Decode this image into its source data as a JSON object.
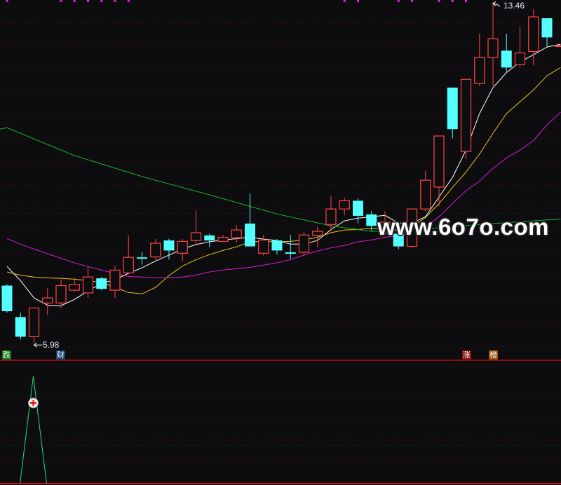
{
  "chart_data": {
    "type": "candlestick",
    "colors": {
      "up": "#ff4444",
      "down": "#54ffff",
      "ma5": "#ffffff",
      "ma10": "#e6c619",
      "ma20": "#d21ad2",
      "ma60": "#16b22c",
      "grid": "#5a0f0f",
      "divider": "#8a0c0c",
      "indicator": "#1fe07a"
    },
    "ylim": [
      5.63,
      13.51
    ],
    "grid": true,
    "candles": [
      [
        7.25,
        7.28,
        6.66,
        6.69
      ],
      [
        6.56,
        6.66,
        6.07,
        6.13
      ],
      [
        6.13,
        6.76,
        5.98,
        6.76
      ],
      [
        6.87,
        7.19,
        6.61,
        6.98
      ],
      [
        6.87,
        7.38,
        6.76,
        7.25
      ],
      [
        7.15,
        7.42,
        7.12,
        7.28
      ],
      [
        7.09,
        7.67,
        6.98,
        7.44
      ],
      [
        7.41,
        7.44,
        7.15,
        7.18
      ],
      [
        7.15,
        7.68,
        6.98,
        7.59
      ],
      [
        7.53,
        8.35,
        7.53,
        7.87
      ],
      [
        7.87,
        7.99,
        7.71,
        7.86
      ],
      [
        7.88,
        8.27,
        7.82,
        8.18
      ],
      [
        8.24,
        8.28,
        7.82,
        8.02
      ],
      [
        7.96,
        8.27,
        7.78,
        8.22
      ],
      [
        8.24,
        8.91,
        8.13,
        8.41
      ],
      [
        8.35,
        8.39,
        8.1,
        8.24
      ],
      [
        8.22,
        8.36,
        8.21,
        8.31
      ],
      [
        8.3,
        8.58,
        8.19,
        8.47
      ],
      [
        8.61,
        9.27,
        8.11,
        8.11
      ],
      [
        7.96,
        8.36,
        7.91,
        8.25
      ],
      [
        8.24,
        8.27,
        7.93,
        8.02
      ],
      [
        7.98,
        8.36,
        7.84,
        7.95
      ],
      [
        7.98,
        8.42,
        7.91,
        8.36
      ],
      [
        8.35,
        8.54,
        8.1,
        8.44
      ],
      [
        8.59,
        9.21,
        8.44,
        8.93
      ],
      [
        8.93,
        9.17,
        8.79,
        9.11
      ],
      [
        9.11,
        9.16,
        8.62,
        8.78
      ],
      [
        8.81,
        8.88,
        8.45,
        8.56
      ],
      [
        8.39,
        8.88,
        8.35,
        8.64
      ],
      [
        8.39,
        8.39,
        8.05,
        8.11
      ],
      [
        8.11,
        8.93,
        8.08,
        8.93
      ],
      [
        8.93,
        9.77,
        8.87,
        9.56
      ],
      [
        9.41,
        10.53,
        8.99,
        10.53
      ],
      [
        11.59,
        11.59,
        10.48,
        10.68
      ],
      [
        10.19,
        11.77,
        10.02,
        11.77
      ],
      [
        11.68,
        12.77,
        11.62,
        12.25
      ],
      [
        12.25,
        13.46,
        11.63,
        12.66
      ],
      [
        12.4,
        12.77,
        11.94,
        12.03
      ],
      [
        12.09,
        12.92,
        12.05,
        12.35
      ],
      [
        12.38,
        13.31,
        12.08,
        13.14
      ],
      [
        13.11,
        13.11,
        12.49,
        12.69
      ],
      [
        12.49,
        12.51,
        12.49,
        12.51
      ]
    ],
    "candle_format": [
      "open",
      "high",
      "low",
      "close"
    ],
    "ma_lines": [
      {
        "key": "ma5",
        "values": [
          7.67,
          7.36,
          6.98,
          6.82,
          6.81,
          6.95,
          7.13,
          7.3,
          7.38,
          7.52,
          7.64,
          7.79,
          7.92,
          8.05,
          8.15,
          8.21,
          8.25,
          8.28,
          8.31,
          8.27,
          8.24,
          8.16,
          8.16,
          8.24,
          8.48,
          8.67,
          8.73,
          8.76,
          8.79,
          8.62,
          8.62,
          8.76,
          9.19,
          9.62,
          10.22,
          11.02,
          11.59,
          11.92,
          12.15,
          12.31,
          12.48,
          12.54
        ]
      },
      {
        "key": "ma10",
        "values": [
          7.55,
          7.48,
          7.44,
          7.42,
          7.41,
          7.39,
          7.36,
          7.32,
          7.21,
          7.1,
          7.07,
          7.21,
          7.47,
          7.68,
          7.82,
          7.93,
          8.02,
          8.1,
          8.21,
          8.22,
          8.21,
          8.22,
          8.25,
          8.31,
          8.41,
          8.47,
          8.48,
          8.51,
          8.48,
          8.47,
          8.54,
          8.74,
          9.05,
          9.4,
          9.74,
          10.13,
          10.59,
          11.02,
          11.28,
          11.54,
          11.85,
          12.03
        ]
      },
      {
        "key": "ma20",
        "values": [
          8.28,
          8.16,
          8.05,
          7.95,
          7.85,
          7.75,
          7.67,
          7.59,
          7.52,
          7.45,
          7.44,
          7.42,
          7.42,
          7.44,
          7.48,
          7.55,
          7.59,
          7.62,
          7.65,
          7.7,
          7.75,
          7.82,
          7.92,
          8.01,
          8.08,
          8.13,
          8.21,
          8.25,
          8.31,
          8.35,
          8.41,
          8.53,
          8.76,
          9.05,
          9.33,
          9.54,
          9.82,
          10.05,
          10.22,
          10.43,
          10.77,
          11.05
        ]
      },
      {
        "key": "ma60",
        "indices": [
          0,
          5,
          10,
          15,
          20,
          24,
          27,
          30,
          35,
          41
        ],
        "values": [
          10.71,
          10.1,
          9.64,
          9.24,
          8.82,
          8.56,
          8.44,
          8.47,
          8.59,
          8.71
        ]
      }
    ],
    "annotations": {
      "low_label": "5.98",
      "low_index": 2,
      "high_label": "13.46",
      "high_index": 36
    },
    "top_marker_indices": [
      0,
      4,
      5,
      6,
      7,
      8,
      9,
      25,
      26,
      29,
      30,
      32,
      33,
      34
    ],
    "indicator": {
      "signal_index": 2,
      "values": [
        0,
        0,
        1,
        0,
        0
      ]
    }
  },
  "badges": {
    "die": "跌",
    "cai": "财",
    "zhang": "涨",
    "bang": "榜"
  },
  "watermark": "www.6o7o.com"
}
